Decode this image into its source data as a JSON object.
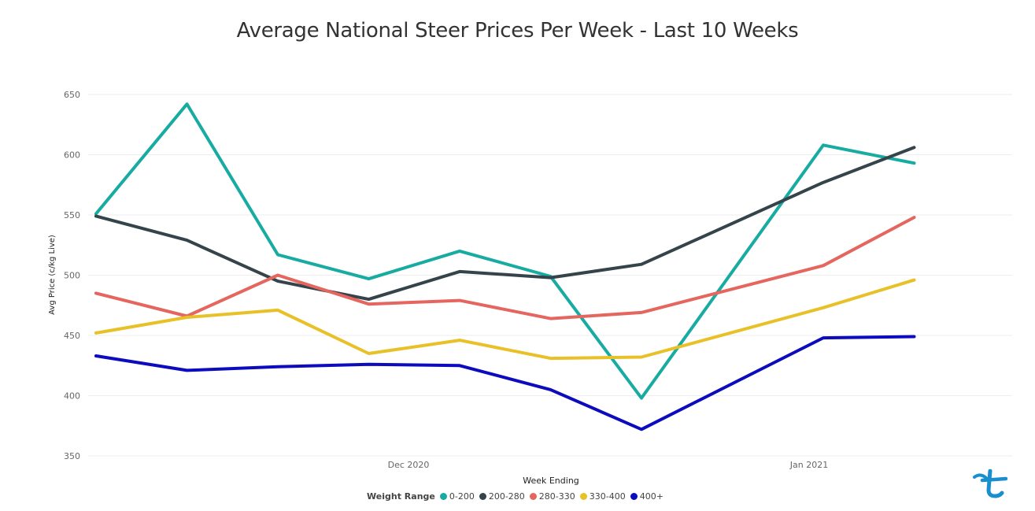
{
  "chart_data": {
    "type": "line",
    "title": "Average National Steer Prices Per Week - Last 10 Weeks",
    "xlabel": "Week Ending",
    "ylabel": "Avg Price (c/kg Live)",
    "ylim": [
      350,
      650
    ],
    "yticks": [
      650,
      600,
      550,
      500,
      450,
      400,
      350
    ],
    "xtick_labels": [
      "Dec 2020",
      "Jan 2021"
    ],
    "grid": true,
    "legend_title": "Weight Range",
    "legend_position": "bottom",
    "series": [
      {
        "name": "0-200",
        "color": "#17ABA2",
        "values": [
          551,
          642,
          517,
          497,
          520,
          499,
          398,
          null,
          608,
          593
        ]
      },
      {
        "name": "200-280",
        "color": "#34444A",
        "values": [
          549,
          529,
          495,
          480,
          503,
          498,
          509,
          null,
          577,
          606
        ]
      },
      {
        "name": "280-330",
        "color": "#E4665F",
        "values": [
          485,
          466,
          500,
          476,
          479,
          464,
          469,
          null,
          508,
          548
        ]
      },
      {
        "name": "330-400",
        "color": "#E8C027",
        "values": [
          452,
          465,
          471,
          435,
          446,
          431,
          432,
          null,
          473,
          496
        ]
      },
      {
        "name": "400+",
        "color": "#0C0CBE",
        "values": [
          433,
          421,
          424,
          426,
          425,
          405,
          372,
          null,
          448,
          449
        ]
      }
    ]
  },
  "logo": {
    "name": "brand-logo",
    "color": "#1A8FD0"
  }
}
